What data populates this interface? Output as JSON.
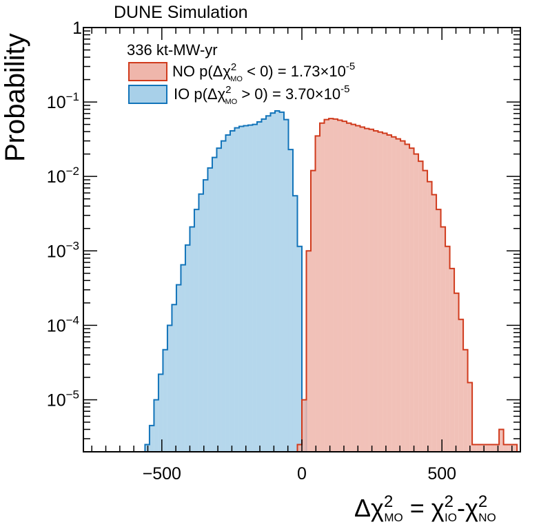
{
  "chart_data": {
    "type": "step-histogram",
    "title": "DUNE Simulation",
    "xlabel": "Δχ²_MO = χ²_IO - χ²_NO",
    "ylabel": "Probability",
    "yscale": "log",
    "xlim": [
      -780,
      780
    ],
    "ylim": [
      2e-06,
      1
    ],
    "xticks": [
      -500,
      0,
      500
    ],
    "xtick_labels": [
      "−500",
      "0",
      "500"
    ],
    "yticks": [
      1e-05,
      0.0001,
      0.001,
      0.01,
      0.1,
      1
    ],
    "ytick_labels": [
      {
        "base": "10",
        "exp": "−5"
      },
      {
        "base": "10",
        "exp": "−4"
      },
      {
        "base": "10",
        "exp": "−3"
      },
      {
        "base": "10",
        "exp": "−2"
      },
      {
        "base": "10",
        "exp": "−1"
      },
      {
        "base": "1",
        "exp": ""
      }
    ],
    "legend": {
      "header": "336 kt-MW-yr",
      "entries": [
        {
          "name": "NO",
          "p_text": "p(Δχ²_MO < 0) = 1.73×10⁻⁵",
          "label_prefix": "NO  p(Δχ",
          "label_sub": "MO",
          "label_cond": " < 0) = 1.73×10",
          "label_exp": "-5",
          "fill": "#efb6ab",
          "edge": "#d03a1c"
        },
        {
          "name": "IO",
          "p_text": "p(Δχ²_MO > 0) = 3.70×10⁻⁵",
          "label_prefix": " IO  p(Δχ",
          "label_sub": "MO",
          "label_cond": " > 0) = 3.70×10",
          "label_exp": "-5",
          "fill": "#a8d0e9",
          "edge": "#1173b9"
        }
      ]
    },
    "series": [
      {
        "name": "IO",
        "fill": "#a8d0e9",
        "edge": "#1173b9",
        "bin_width": 16,
        "edges_start": -560,
        "values": [
          2.5e-06,
          4.5e-06,
          1e-05,
          2.2e-05,
          4.7e-05,
          0.0001,
          0.00019,
          0.00035,
          0.00065,
          0.0012,
          0.0021,
          0.0036,
          0.0058,
          0.009,
          0.013,
          0.018,
          0.024,
          0.03,
          0.036,
          0.041,
          0.045,
          0.047,
          0.048,
          0.049,
          0.05,
          0.054,
          0.059,
          0.065,
          0.071,
          0.076,
          0.073,
          0.058,
          0.023,
          0.0055,
          0.00115,
          1e-05
        ]
      },
      {
        "name": "NO",
        "fill": "#efb6ab",
        "edge": "#d03a1c",
        "bin_width": 16,
        "edges_start": -16,
        "values": [
          2.5e-06,
          1e-05,
          0.001,
          0.012,
          0.035,
          0.052,
          0.058,
          0.06,
          0.059,
          0.057,
          0.055,
          0.052,
          0.05,
          0.048,
          0.046,
          0.044,
          0.043,
          0.041,
          0.0395,
          0.038,
          0.036,
          0.034,
          0.032,
          0.03,
          0.027,
          0.024,
          0.02,
          0.016,
          0.012,
          0.0085,
          0.0057,
          0.0036,
          0.0021,
          0.00115,
          0.00058,
          0.00027,
          0.00012,
          4.7e-05,
          1.7e-05,
          2.5e-06,
          2.5e-06,
          2.5e-06,
          2.5e-06,
          2.5e-06,
          2.5e-06,
          4e-06,
          2.5e-06,
          2.5e-06,
          2.5e-06
        ]
      }
    ]
  }
}
